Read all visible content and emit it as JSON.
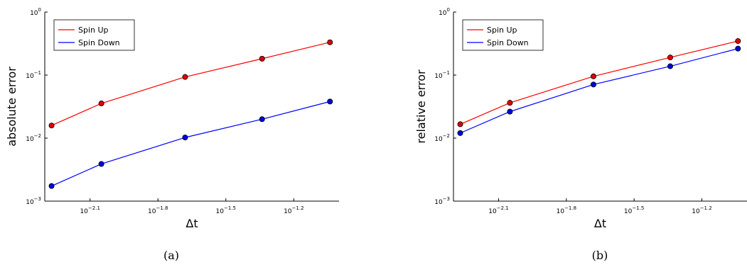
{
  "chart_data": [
    {
      "type": "line",
      "xscale": "log",
      "yscale": "log",
      "xlabel": "Δt",
      "ylabel": "absolute error",
      "caption": "(a)",
      "xlim_log10": [
        -2.3,
        -1.0
      ],
      "ylim_log10": [
        -3,
        0
      ],
      "x_ticks": [
        {
          "value": -2.1,
          "label": "−2.1"
        },
        {
          "value": -1.8,
          "label": "−1.8"
        },
        {
          "value": -1.5,
          "label": "−1.5"
        },
        {
          "value": -1.2,
          "label": "−1.2"
        }
      ],
      "y_ticks": [
        {
          "value": -3,
          "label": "−3"
        },
        {
          "value": -2,
          "label": "−2"
        },
        {
          "value": -1,
          "label": "−1"
        },
        {
          "value": 0,
          "label": "0"
        }
      ],
      "legend": "top-left",
      "x": [
        -2.27,
        -2.05,
        -1.68,
        -1.34,
        -1.04
      ],
      "series": [
        {
          "name": "Spin Up",
          "color": "#ff0000",
          "marker_color": "#dd0000",
          "log10_values": [
            -1.8,
            -1.45,
            -1.03,
            -0.74,
            -0.48
          ]
        },
        {
          "name": "Spin Down",
          "color": "#0000ff",
          "marker_color": "#0000dd",
          "log10_values": [
            -2.76,
            -2.41,
            -1.99,
            -1.7,
            -1.42
          ]
        }
      ]
    },
    {
      "type": "line",
      "xscale": "log",
      "yscale": "log",
      "xlabel": "Δt",
      "ylabel": "relative error",
      "caption": "(b)",
      "xlim_log10": [
        -2.3,
        -1.0
      ],
      "ylim_log10": [
        -3,
        0
      ],
      "x_ticks": [
        {
          "value": -2.1,
          "label": "−2.1"
        },
        {
          "value": -1.8,
          "label": "−1.8"
        },
        {
          "value": -1.5,
          "label": "−1.5"
        },
        {
          "value": -1.2,
          "label": "−1.2"
        }
      ],
      "y_ticks": [
        {
          "value": -3,
          "label": "−3"
        },
        {
          "value": -2,
          "label": "−2"
        },
        {
          "value": -1,
          "label": "−1"
        },
        {
          "value": 0,
          "label": "0"
        }
      ],
      "legend": "top-left",
      "x": [
        -2.27,
        -2.05,
        -1.68,
        -1.34,
        -1.04
      ],
      "series": [
        {
          "name": "Spin Up",
          "color": "#ff0000",
          "marker_color": "#dd0000",
          "log10_values": [
            -1.78,
            -1.44,
            -1.02,
            -0.72,
            -0.46
          ]
        },
        {
          "name": "Spin Down",
          "color": "#0000ff",
          "marker_color": "#0000dd",
          "log10_values": [
            -1.92,
            -1.58,
            -1.15,
            -0.86,
            -0.58
          ]
        }
      ]
    }
  ]
}
